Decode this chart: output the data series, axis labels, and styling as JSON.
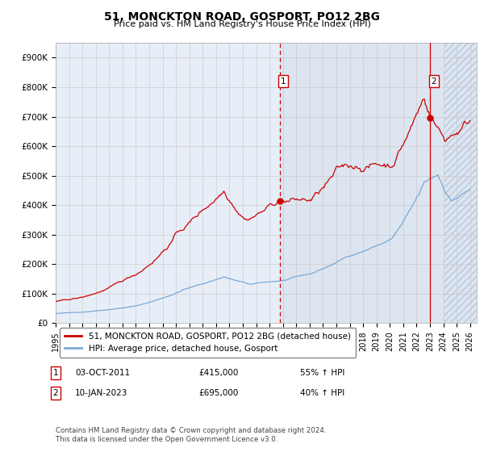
{
  "title": "51, MONCKTON ROAD, GOSPORT, PO12 2BG",
  "subtitle": "Price paid vs. HM Land Registry's House Price Index (HPI)",
  "ylim": [
    0,
    950000
  ],
  "yticks": [
    0,
    100000,
    200000,
    300000,
    400000,
    500000,
    600000,
    700000,
    800000,
    900000
  ],
  "ytick_labels": [
    "£0",
    "£100K",
    "£200K",
    "£300K",
    "£400K",
    "£500K",
    "£600K",
    "£700K",
    "£800K",
    "£900K"
  ],
  "xlim_start": 1995.0,
  "xlim_end": 2026.5,
  "xticks": [
    1995,
    1996,
    1997,
    1998,
    1999,
    2000,
    2001,
    2002,
    2003,
    2004,
    2005,
    2006,
    2007,
    2008,
    2009,
    2010,
    2011,
    2012,
    2013,
    2014,
    2015,
    2016,
    2017,
    2018,
    2019,
    2020,
    2021,
    2022,
    2023,
    2024,
    2025,
    2026
  ],
  "hpi_color": "#7aa8d4",
  "property_color": "#cc0000",
  "vline_color": "#cc0000",
  "grid_color": "#cccccc",
  "background_color": "#e8eef8",
  "future_bg_color": "#dce5f0",
  "legend_label_property": "51, MONCKTON ROAD, GOSPORT, PO12 2BG (detached house)",
  "legend_label_hpi": "HPI: Average price, detached house, Gosport",
  "sale1_x": 2011.75,
  "sale1_y": 415000,
  "sale1_date": "03-OCT-2011",
  "sale1_price": "£415,000",
  "sale1_hpi": "55% ↑ HPI",
  "sale2_x": 2023.03,
  "sale2_y": 695000,
  "sale2_date": "10-JAN-2023",
  "sale2_price": "£695,000",
  "sale2_hpi": "40% ↑ HPI",
  "future_start": 2011.75,
  "hatch_start": 2024.08,
  "copyright_text": "Contains HM Land Registry data © Crown copyright and database right 2024.\nThis data is licensed under the Open Government Licence v3.0."
}
